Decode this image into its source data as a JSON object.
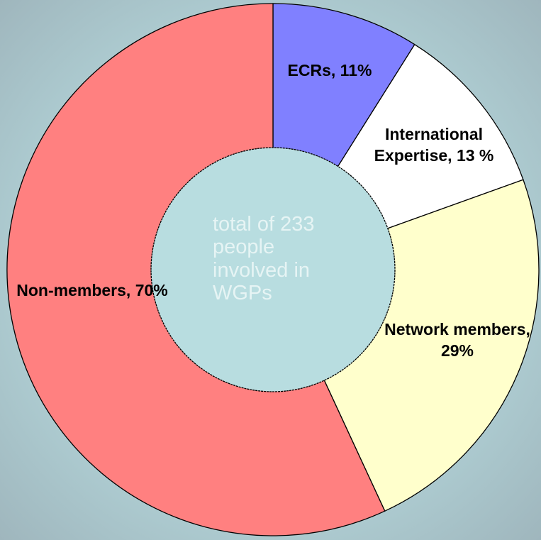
{
  "chart_data": {
    "type": "donut",
    "values": [
      11,
      13,
      29,
      70
    ],
    "value_labels": [
      "ECRs, 11%",
      "International Expertise, 13 %",
      "Network members, 29%",
      "Non-members, 70%"
    ],
    "colors": [
      "#8080ff",
      "#ffffff",
      "#ffffcc",
      "#ff8080"
    ],
    "annotation": "total of 233 people involved in WGPs"
  }
}
